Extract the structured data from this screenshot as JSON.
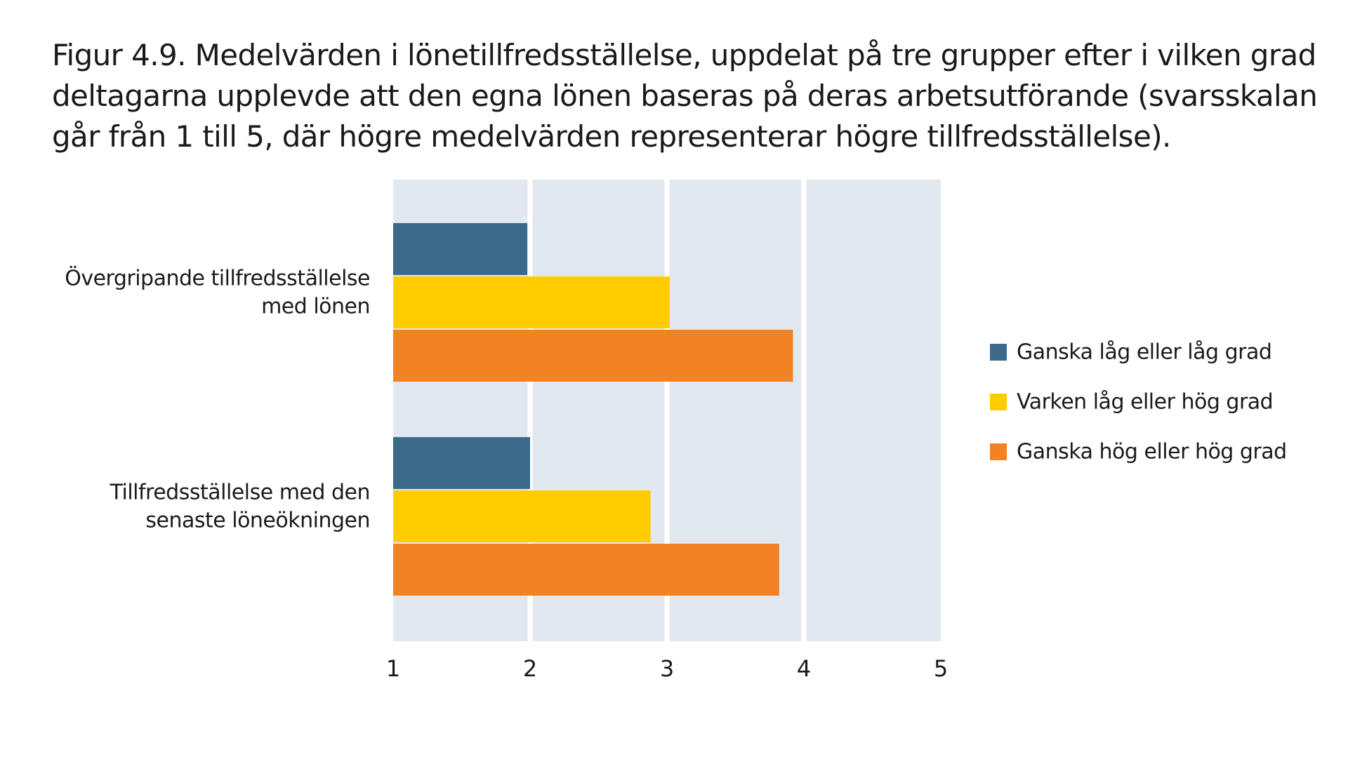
{
  "figure": {
    "title_lines": [
      "Figur 4.9. Medelvärden i lönetillfredsställelse, uppdelat på tre grupper efter i vilken grad",
      "deltagarna upplevde att den egna lönen baseras på deras arbetsutförande (svarsskalan",
      "går från 1 till 5, där högre medelvärden representerar högre tillfredsställelse)."
    ]
  },
  "chart_data": {
    "type": "bar",
    "orientation": "horizontal",
    "title": "Figur 4.9. Medelvärden i lönetillfredsställelse, uppdelat på tre grupper efter i vilken grad deltagarna upplevde att den egna lönen baseras på deras arbetsutförande (svarsskalan går från 1 till 5, där högre medelvärden representerar högre tillfredsställelse).",
    "categories": [
      {
        "lines": [
          "Övergripande tillfredsställelse",
          "med lönen"
        ]
      },
      {
        "lines": [
          "Tillfredsställelse med den",
          "senaste löneökningen"
        ]
      }
    ],
    "series": [
      {
        "name": "Ganska låg eller låg grad",
        "color": "#3b6a8a",
        "values": [
          1.98,
          2.0
        ]
      },
      {
        "name": "Varken låg eller hög grad",
        "color": "#ffcc00",
        "values": [
          3.02,
          2.88
        ]
      },
      {
        "name": "Ganska hög eller hög grad",
        "color": "#f28223",
        "values": [
          3.92,
          3.82
        ]
      }
    ],
    "xlim": [
      1,
      5
    ],
    "xticks": [
      "1",
      "2",
      "3",
      "4",
      "5"
    ],
    "xlabel": "",
    "ylabel": "",
    "grid": true,
    "plot_background": "#e2e8f0",
    "gridline_color": "#ffffff",
    "legend_position": "right"
  }
}
